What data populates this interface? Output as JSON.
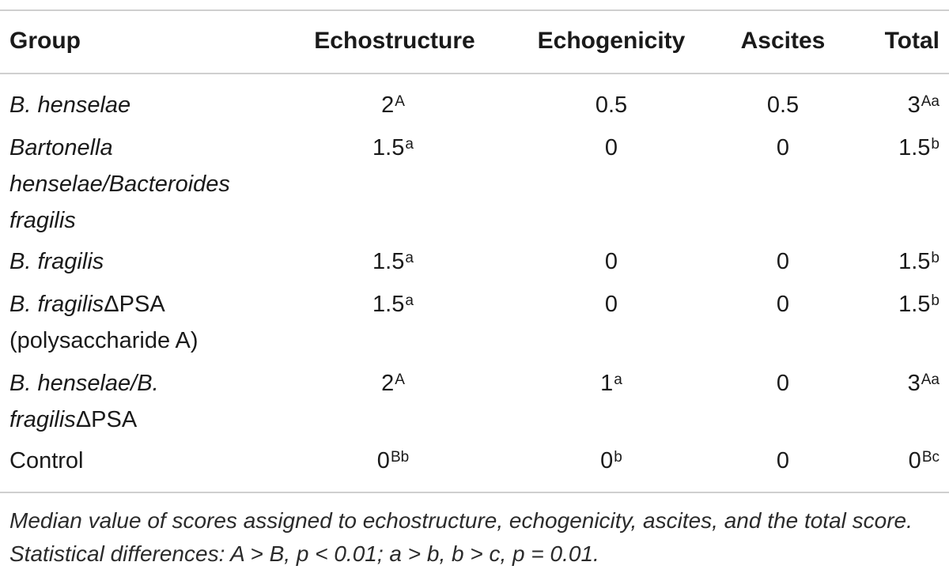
{
  "headers": {
    "group": "Group",
    "echostructure": "Echostructure",
    "echogenicity": "Echogenicity",
    "ascites": "Ascites",
    "total": "Total"
  },
  "rows": [
    {
      "group_lines": [
        "B. henselae"
      ],
      "group_italic": [
        true
      ],
      "echostructure": {
        "value": "2",
        "sup": "A"
      },
      "echogenicity": {
        "value": "0.5",
        "sup": ""
      },
      "ascites": {
        "value": "0.5",
        "sup": ""
      },
      "total": {
        "value": "3",
        "sup": "Aa"
      }
    },
    {
      "group_lines": [
        "Bartonella",
        "henselae/Bacteroides",
        "fragilis"
      ],
      "group_italic": [
        true,
        true,
        true
      ],
      "echostructure": {
        "value": "1.5",
        "sup": "a"
      },
      "echogenicity": {
        "value": "0",
        "sup": ""
      },
      "ascites": {
        "value": "0",
        "sup": ""
      },
      "total": {
        "value": "1.5",
        "sup": "b"
      }
    },
    {
      "group_lines": [
        "B. fragilis"
      ],
      "group_italic": [
        true
      ],
      "echostructure": {
        "value": "1.5",
        "sup": "a"
      },
      "echogenicity": {
        "value": "0",
        "sup": ""
      },
      "ascites": {
        "value": "0",
        "sup": ""
      },
      "total": {
        "value": "1.5",
        "sup": "b"
      }
    },
    {
      "group_lines": [
        "B. fragilis",
        "(polysaccharide A)"
      ],
      "group_suffix": "ΔPSA",
      "group_italic": [
        true,
        false
      ],
      "echostructure": {
        "value": "1.5",
        "sup": "a"
      },
      "echogenicity": {
        "value": "0",
        "sup": ""
      },
      "ascites": {
        "value": "0",
        "sup": ""
      },
      "total": {
        "value": "1.5",
        "sup": "b"
      }
    },
    {
      "group_lines": [
        "B. henselae/B.",
        "fragilis"
      ],
      "group_suffix": "ΔPSA",
      "group_italic": [
        true,
        true
      ],
      "echostructure": {
        "value": "2",
        "sup": "A"
      },
      "echogenicity": {
        "value": "1",
        "sup": "a"
      },
      "ascites": {
        "value": "0",
        "sup": ""
      },
      "total": {
        "value": "3",
        "sup": "Aa"
      }
    },
    {
      "group_lines": [
        "Control"
      ],
      "group_italic": [
        false
      ],
      "echostructure": {
        "value": "0",
        "sup": "Bb"
      },
      "echogenicity": {
        "value": "0",
        "sup": "b"
      },
      "ascites": {
        "value": "0",
        "sup": ""
      },
      "total": {
        "value": "0",
        "sup": "Bc"
      }
    }
  ],
  "caption": "Median value of scores assigned to echostructure, echogenicity, ascites, and the total score. Statistical differences: A > B, p < 0.01; a > b, b > c, p = 0.01."
}
